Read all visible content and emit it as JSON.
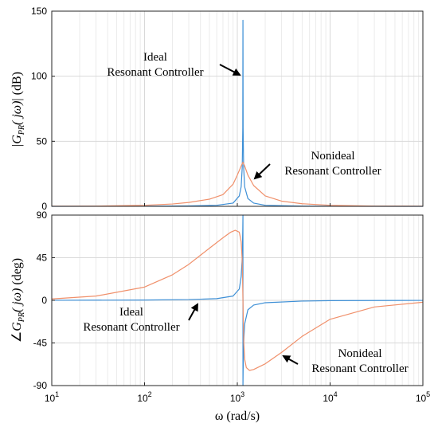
{
  "chart_data": [
    {
      "type": "line",
      "panel": "magnitude",
      "x_scale": "log",
      "xlim": [
        10,
        100000
      ],
      "ylim": [
        0,
        150
      ],
      "x_ticks": [
        10,
        100,
        1000,
        10000,
        100000
      ],
      "y_ticks": [
        0,
        50,
        100,
        150
      ],
      "y_tick_labels": [
        "0",
        "50",
        "100",
        "150"
      ],
      "ylabel_parts": {
        "open": "|",
        "G": "G",
        "sub": "PR",
        "arg": "( jω)",
        "close": "|",
        "unit": "(dB)"
      },
      "grid": true,
      "series": [
        {
          "name": "Ideal Resonant Controller",
          "color": "#3d8fd6",
          "x": [
            10,
            100,
            300,
            600,
            900,
            1050,
            1100,
            1130,
            1145,
            1150,
            1155,
            1170,
            1200,
            1300,
            1500,
            2000,
            5000,
            10000,
            100000
          ],
          "y": [
            0,
            0.1,
            0.3,
            0.8,
            2.5,
            8,
            15,
            30,
            60,
            143,
            60,
            30,
            15,
            6,
            2.5,
            0.8,
            0.2,
            0.1,
            0
          ]
        },
        {
          "name": "Nonideal Resonant Controller",
          "color": "#f0906b",
          "x": [
            10,
            30,
            100,
            200,
            300,
            500,
            700,
            900,
            1000,
            1100,
            1150,
            1200,
            1300,
            1500,
            2000,
            3000,
            5000,
            10000,
            30000,
            100000
          ],
          "y": [
            0.1,
            0.2,
            0.8,
            1.8,
            3,
            5.5,
            9,
            17,
            24,
            31,
            34,
            31,
            24,
            16,
            8,
            4,
            2,
            0.8,
            0.2,
            0.1
          ]
        }
      ],
      "annotations": [
        {
          "lines": [
            "Ideal",
            "Resonant Controller"
          ]
        },
        {
          "lines": [
            "Nonideal",
            "Resonant Controller"
          ]
        }
      ]
    },
    {
      "type": "line",
      "panel": "phase",
      "x_scale": "log",
      "xlim": [
        10,
        100000
      ],
      "ylim": [
        -90,
        90
      ],
      "x_ticks": [
        10,
        100,
        1000,
        10000,
        100000
      ],
      "x_tick_bases": [
        "10",
        "10",
        "10",
        "10",
        "10"
      ],
      "x_tick_exps": [
        "1",
        "2",
        "3",
        "4",
        "5"
      ],
      "y_ticks": [
        -90,
        -45,
        0,
        45,
        90
      ],
      "y_tick_labels": [
        "-90",
        "-45",
        "0",
        "45",
        "90"
      ],
      "xlabel": "ω (rad/s)",
      "ylabel_parts": {
        "open": "∠",
        "G": "G",
        "sub": "PR",
        "arg": "( jω)",
        "close": "",
        "unit": "(deg)"
      },
      "grid": true,
      "series": [
        {
          "name": "Ideal Resonant Controller",
          "color": "#3d8fd6",
          "x": [
            10,
            100,
            300,
            600,
            900,
            1050,
            1100,
            1130,
            1145,
            1149.9,
            1150.1,
            1155,
            1170,
            1200,
            1300,
            1500,
            2000,
            5000,
            10000,
            100000
          ],
          "y": [
            0.03,
            0.3,
            0.8,
            1.8,
            4.5,
            12,
            25,
            45,
            75,
            90,
            -90,
            -75,
            -45,
            -25,
            -10,
            -5,
            -2.5,
            -0.8,
            -0.3,
            -0.03
          ]
        },
        {
          "name": "Nonideal Resonant Controller",
          "color": "#f0906b",
          "x": [
            10,
            30,
            100,
            200,
            300,
            500,
            700,
            850,
            950,
            1050,
            1100,
            1125,
            1140,
            1150,
            1160,
            1175,
            1200,
            1250,
            1350,
            1500,
            2000,
            3000,
            5000,
            10000,
            30000,
            100000
          ],
          "y": [
            1.5,
            4.5,
            14,
            27,
            38,
            55,
            66,
            72,
            74,
            72,
            62,
            45,
            22,
            0,
            -22,
            -45,
            -62,
            -71,
            -74,
            -73,
            -67,
            -55,
            -38,
            -20,
            -7,
            -2
          ],
          "x_note": "values estimated from plot"
        }
      ],
      "annotations": [
        {
          "lines": [
            "Ideal",
            "Resonant Controller"
          ]
        },
        {
          "lines": [
            "Nonideal",
            "Resonant Controller"
          ]
        }
      ]
    }
  ]
}
